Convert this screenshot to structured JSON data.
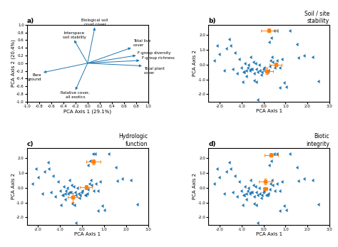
{
  "chart_data": [
    {
      "type": "biplot",
      "annotations": [
        {
          "text": "a)"
        }
      ],
      "xlabel": "PCA Axis 1 (29.1%)",
      "ylabel": "PCA Axis 2 (20.4%)",
      "xlim": [
        -1.0,
        1.0
      ],
      "ylim": [
        -1.0,
        1.0
      ],
      "xticks": [
        -1.0,
        -0.8,
        -0.6,
        -0.4,
        -0.2,
        0.0,
        0.2,
        0.4,
        0.6,
        0.8,
        1.0
      ],
      "yticks": [
        -1.0,
        -0.8,
        -0.6,
        -0.4,
        -0.2,
        0.0,
        0.2,
        0.4,
        0.6,
        0.8,
        1.0
      ],
      "vectors": [
        {
          "label": "Biological soil\ncrust cover",
          "x": 0.12,
          "y": 0.93
        },
        {
          "label": "Interspace\nsoil stability",
          "x": -0.22,
          "y": 0.6
        },
        {
          "label": "Total live\ncover",
          "x": 0.72,
          "y": 0.4
        },
        {
          "label": "F-group diversity",
          "x": 0.8,
          "y": 0.2
        },
        {
          "label": "F-group richness",
          "x": 0.86,
          "y": 0.07
        },
        {
          "label": "Total plant\ncover",
          "x": 0.9,
          "y": -0.07
        },
        {
          "label": "Bare\nground",
          "x": -0.73,
          "y": -0.24
        },
        {
          "label": "Relative cover,\nall exotics",
          "x": -0.2,
          "y": -0.7
        }
      ]
    },
    {
      "type": "scatter",
      "title": "Soil / site\nstability",
      "annotations": [
        {
          "text": "b)"
        }
      ],
      "xlabel": "PCA Axis 1",
      "ylabel": "PCA Axis 2",
      "xlim": [
        -2.5,
        3.0
      ],
      "ylim": [
        -2.5,
        2.7
      ],
      "xticks": [
        -2.0,
        -1.0,
        0.0,
        1.0,
        2.0,
        3.0
      ],
      "yticks": [
        -2.0,
        -1.0,
        0.0,
        1.0,
        2.0
      ],
      "series": [
        {
          "type": "scatter",
          "marker": "caretleft",
          "x": [
            -2.3,
            -2.15,
            -2.05,
            -1.85,
            -1.75,
            -1.6,
            -1.45,
            -1.35,
            -1.25,
            -1.15,
            -1.05,
            -0.95,
            -0.88,
            -0.82,
            -0.78,
            -0.72,
            -0.68,
            -0.62,
            -0.56,
            -0.52,
            -0.46,
            -0.42,
            -0.36,
            -0.31,
            -0.26,
            -0.21,
            -0.16,
            -0.12,
            -0.06,
            -0.02,
            0.08,
            0.13,
            0.18,
            0.23,
            0.28,
            0.34,
            0.38,
            0.48,
            0.58,
            0.68,
            0.78,
            0.88,
            0.98,
            1.15,
            1.48,
            1.78,
            2.18,
            2.45,
            -0.92,
            -0.82,
            -0.62,
            0.45,
            0.55,
            -1.55,
            -0.38,
            0.22,
            -0.48,
            0.68,
            -0.32,
            1.55,
            -1.0,
            0.32
          ],
          "values": [
            0.3,
            1.3,
            0.7,
            -0.4,
            1.1,
            1.7,
            -0.3,
            0.8,
            -0.6,
            0.4,
            -0.2,
            -0.5,
            0.1,
            -0.8,
            -0.2,
            0.0,
            -0.4,
            0.5,
            -0.3,
            0.2,
            -0.6,
            0.1,
            -0.3,
            -0.5,
            0.0,
            -0.4,
            -0.7,
            -0.5,
            -0.3,
            -0.2,
            -0.5,
            -0.5,
            -0.4,
            -0.1,
            0.3,
            0.5,
            0.2,
            -0.2,
            0.3,
            -0.2,
            0.4,
            -1.2,
            -1.5,
            2.3,
            1.4,
            0.6,
            0.5,
            -1.1,
            -0.5,
            -0.4,
            -0.3,
            2.3,
            2.3,
            1.3,
            -1.15,
            1.55,
            -1.05,
            -1.55,
            -2.35,
            0.45,
            -1.15,
            1.8
          ]
        },
        {
          "type": "errorbar",
          "marker": "square",
          "x": [
            0.15,
            0.55,
            0.25
          ],
          "values": [
            -0.42,
            0.0,
            2.32
          ],
          "x_error": [
            0.28,
            0.28,
            0.38
          ],
          "y_error": [
            0.22,
            0.12,
            0.12
          ]
        }
      ]
    },
    {
      "type": "scatter",
      "title": "Hydrologic\nfunction",
      "annotations": [
        {
          "text": "c)"
        }
      ],
      "xlabel": "PCA Axis 1",
      "ylabel": "PCA Axis 2",
      "xlim": [
        -2.5,
        3.0
      ],
      "ylim": [
        -2.5,
        2.7
      ],
      "xticks": [
        -2.0,
        -1.0,
        0.0,
        1.0,
        2.0,
        3.0
      ],
      "yticks": [
        -2.0,
        -1.0,
        0.0,
        1.0,
        2.0
      ],
      "series": [
        {
          "type": "scatter",
          "marker": "caretleft",
          "x": [
            -2.3,
            -2.15,
            -2.05,
            -1.85,
            -1.75,
            -1.6,
            -1.45,
            -1.35,
            -1.25,
            -1.15,
            -1.05,
            -0.95,
            -0.88,
            -0.82,
            -0.78,
            -0.72,
            -0.68,
            -0.62,
            -0.56,
            -0.52,
            -0.46,
            -0.42,
            -0.36,
            -0.31,
            -0.26,
            -0.21,
            -0.16,
            -0.12,
            -0.06,
            -0.02,
            0.08,
            0.13,
            0.18,
            0.23,
            0.28,
            0.34,
            0.38,
            0.48,
            0.58,
            0.68,
            0.78,
            0.88,
            0.98,
            1.15,
            1.48,
            1.78,
            2.18,
            2.45,
            -0.92,
            -0.82,
            -0.62,
            0.45,
            0.55,
            -1.55,
            -0.38,
            0.22,
            -0.48,
            0.68,
            -0.32,
            1.55,
            -1.0,
            0.32
          ],
          "values": [
            0.3,
            1.3,
            0.7,
            -0.4,
            1.1,
            1.7,
            -0.3,
            0.8,
            -0.6,
            0.4,
            -0.2,
            -0.5,
            0.1,
            -0.8,
            -0.2,
            0.0,
            -0.4,
            0.5,
            -0.3,
            0.2,
            -0.6,
            0.1,
            -0.3,
            -0.5,
            0.0,
            -0.4,
            -0.7,
            -0.5,
            -0.3,
            -0.2,
            -0.5,
            -0.5,
            -0.4,
            -0.1,
            0.3,
            0.5,
            0.2,
            -0.2,
            0.3,
            -0.2,
            0.4,
            -1.2,
            -1.5,
            2.3,
            1.4,
            0.6,
            0.5,
            -1.1,
            -0.5,
            -0.4,
            -0.3,
            2.3,
            2.3,
            1.3,
            -1.15,
            1.55,
            -1.05,
            -1.55,
            -2.35,
            0.45,
            -1.15,
            1.8
          ]
        },
        {
          "type": "errorbar",
          "marker": "square",
          "x": [
            -0.42,
            0.18,
            0.52
          ],
          "values": [
            -0.65,
            0.05,
            1.75
          ],
          "x_error": [
            0.22,
            0.28,
            0.32
          ],
          "y_error": [
            0.32,
            0.14,
            0.18
          ]
        }
      ]
    },
    {
      "type": "scatter",
      "title": "Biotic\nintegrity",
      "annotations": [
        {
          "text": "d)"
        }
      ],
      "xlabel": "PCA Axis 1",
      "ylabel": "PCA Axis 2",
      "xlim": [
        -2.5,
        3.0
      ],
      "ylim": [
        -2.5,
        2.7
      ],
      "xticks": [
        -2.0,
        -1.0,
        0.0,
        1.0,
        2.0,
        3.0
      ],
      "yticks": [
        -2.0,
        -1.0,
        0.0,
        1.0,
        2.0
      ],
      "series": [
        {
          "type": "scatter",
          "marker": "caretleft",
          "x": [
            -2.3,
            -2.15,
            -2.05,
            -1.85,
            -1.75,
            -1.6,
            -1.45,
            -1.35,
            -1.25,
            -1.15,
            -1.05,
            -0.95,
            -0.88,
            -0.82,
            -0.78,
            -0.72,
            -0.68,
            -0.62,
            -0.56,
            -0.52,
            -0.46,
            -0.42,
            -0.36,
            -0.31,
            -0.26,
            -0.21,
            -0.16,
            -0.12,
            -0.06,
            -0.02,
            0.08,
            0.13,
            0.18,
            0.23,
            0.28,
            0.34,
            0.38,
            0.48,
            0.58,
            0.68,
            0.78,
            0.88,
            0.98,
            1.15,
            1.48,
            1.78,
            2.18,
            2.45,
            -0.92,
            -0.82,
            -0.62,
            0.45,
            0.55,
            -1.55,
            -0.38,
            0.22,
            -0.48,
            0.68,
            -0.32,
            1.55,
            -1.0,
            0.32
          ],
          "values": [
            0.3,
            1.3,
            0.7,
            -0.4,
            1.1,
            1.7,
            -0.3,
            0.8,
            -0.6,
            0.4,
            -0.2,
            -0.5,
            0.1,
            -0.8,
            -0.2,
            0.0,
            -0.4,
            0.5,
            -0.3,
            0.2,
            -0.6,
            0.1,
            -0.3,
            -0.5,
            0.0,
            -0.4,
            -0.7,
            -0.5,
            -0.3,
            -0.2,
            -0.5,
            -0.5,
            -0.4,
            -0.1,
            0.3,
            0.5,
            0.2,
            -0.2,
            0.3,
            -0.2,
            0.4,
            -1.2,
            -1.5,
            2.3,
            1.4,
            0.6,
            0.5,
            -1.1,
            -0.5,
            -0.4,
            -0.3,
            2.3,
            2.3,
            1.3,
            -1.15,
            1.55,
            -1.05,
            -1.55,
            -2.35,
            0.45,
            -1.15,
            1.8
          ]
        },
        {
          "type": "errorbar",
          "marker": "square",
          "x": [
            0.08,
            0.08,
            0.35
          ],
          "values": [
            0.42,
            -0.05,
            2.22
          ],
          "x_error": [
            0.28,
            0.1,
            0.32
          ],
          "y_error": [
            0.2,
            0.1,
            0.12
          ]
        }
      ]
    }
  ]
}
